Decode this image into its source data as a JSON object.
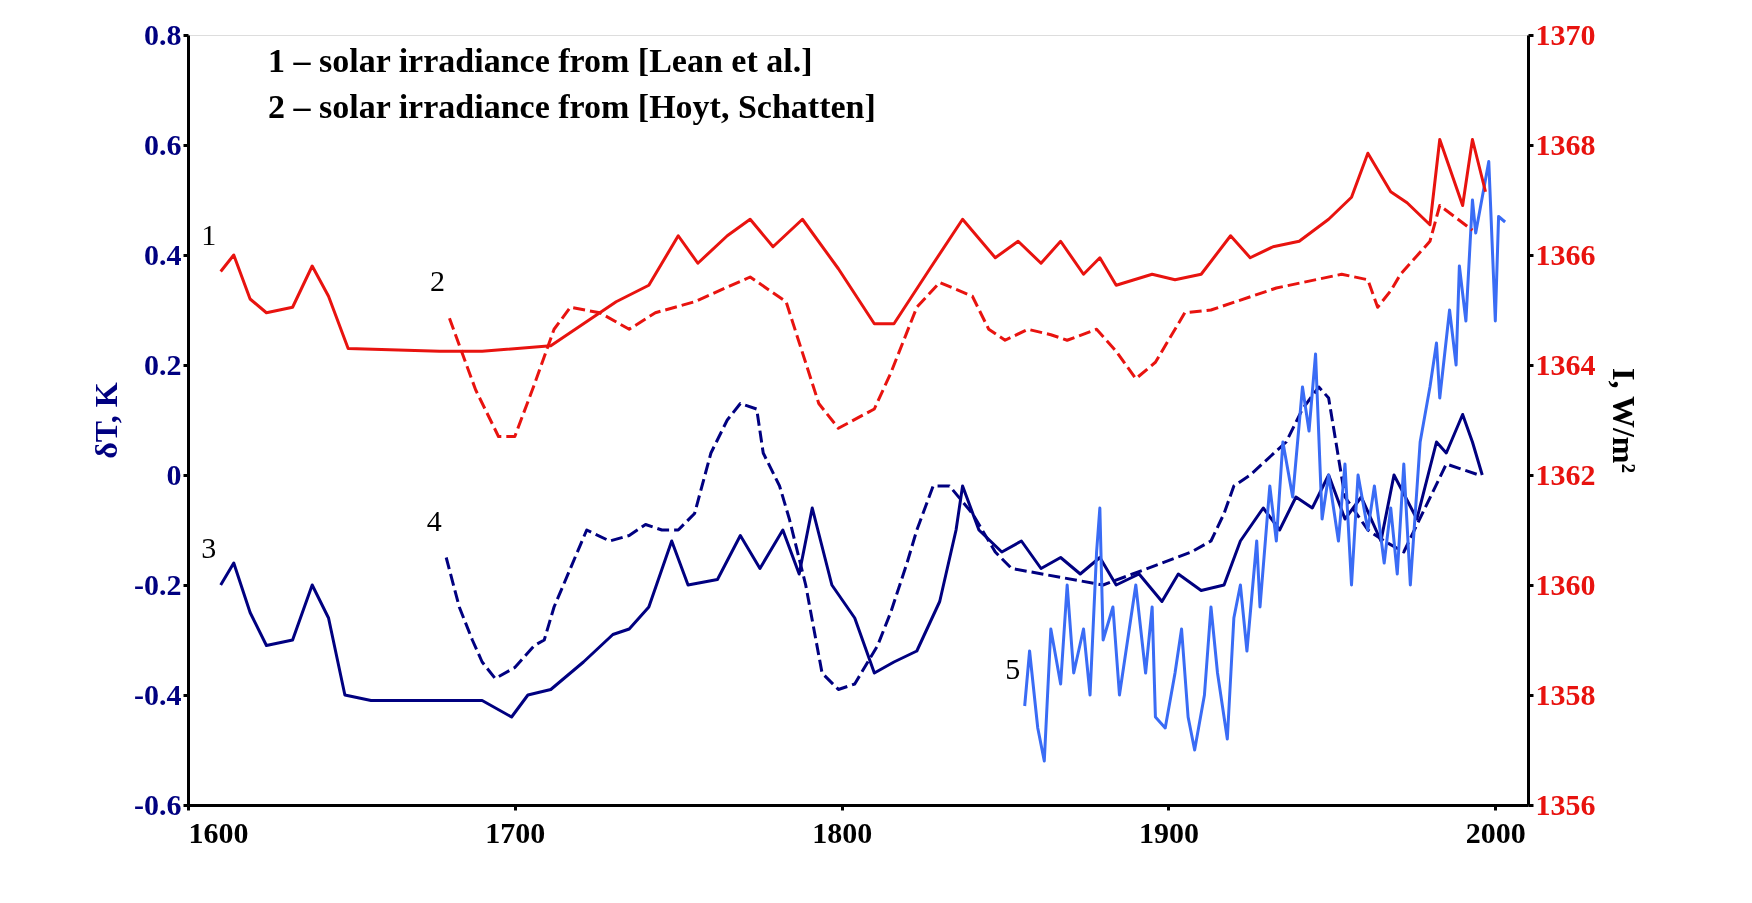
{
  "chart_data": {
    "type": "line",
    "annotations": [
      "1 – solar irradiance from [Lean et al.]",
      "2 – solar irradiance from [Hoyt, Schatten]"
    ],
    "ylabel": "δT, K",
    "y2label": "I, W/m²",
    "xlim": [
      1600,
      2010
    ],
    "xticks": [
      1600,
      1700,
      1800,
      1900,
      2000
    ],
    "ylim": [
      -0.6,
      0.8
    ],
    "yticks": [
      -0.6,
      -0.4,
      -0.2,
      0,
      0.2,
      0.4,
      0.6,
      0.8
    ],
    "y2lim": [
      1356,
      1370
    ],
    "y2ticks": [
      1356,
      1358,
      1360,
      1362,
      1364,
      1366,
      1368,
      1370
    ],
    "grid": false,
    "marker": "none",
    "series": [
      {
        "name": "1",
        "axis": "y2",
        "color": "#e8130f",
        "line_style": "solid",
        "x": [
          1610,
          1614,
          1619,
          1624,
          1632,
          1638,
          1643,
          1649,
          1677,
          1690,
          1711,
          1721,
          1731,
          1741,
          1750,
          1756,
          1765,
          1772,
          1779,
          1788,
          1799,
          1810,
          1816,
          1827,
          1837,
          1847,
          1854,
          1861,
          1867,
          1874,
          1879,
          1884,
          1895,
          1902,
          1910,
          1919,
          1925,
          1932,
          1940,
          1949,
          1956,
          1961,
          1968,
          1973,
          1980,
          1983,
          1990,
          1993,
          1997
        ],
        "values": [
          1365.7,
          1366.0,
          1365.2,
          1364.95,
          1365.05,
          1365.8,
          1365.25,
          1364.3,
          1364.25,
          1364.25,
          1364.35,
          1364.75,
          1365.15,
          1365.45,
          1366.35,
          1365.85,
          1366.35,
          1366.65,
          1366.15,
          1366.65,
          1365.75,
          1364.75,
          1364.75,
          1365.75,
          1366.65,
          1365.95,
          1366.25,
          1365.85,
          1366.25,
          1365.65,
          1365.95,
          1365.45,
          1365.65,
          1365.55,
          1365.65,
          1366.35,
          1365.95,
          1366.15,
          1366.25,
          1366.65,
          1367.05,
          1367.85,
          1367.15,
          1366.95,
          1366.55,
          1368.1,
          1366.9,
          1368.1,
          1367.15
        ]
      },
      {
        "name": "2",
        "axis": "y2",
        "color": "#e8130f",
        "line_style": "dashed",
        "x": [
          1680,
          1688,
          1695,
          1700,
          1706,
          1712,
          1717,
          1726,
          1735,
          1743,
          1755,
          1772,
          1783,
          1793,
          1799,
          1810,
          1815,
          1823,
          1830,
          1840,
          1845,
          1850,
          1857,
          1864,
          1869,
          1878,
          1884,
          1890,
          1896,
          1905,
          1913,
          1933,
          1953,
          1961,
          1964,
          1968,
          1971,
          1980,
          1983,
          1993
        ],
        "values": [
          1364.85,
          1363.55,
          1362.7,
          1362.7,
          1363.65,
          1364.65,
          1365.05,
          1364.95,
          1364.65,
          1364.95,
          1365.15,
          1365.6,
          1365.15,
          1363.3,
          1362.85,
          1363.2,
          1363.85,
          1365.05,
          1365.5,
          1365.25,
          1364.65,
          1364.45,
          1364.65,
          1364.55,
          1364.45,
          1364.65,
          1364.25,
          1363.75,
          1364.05,
          1364.95,
          1365.0,
          1365.4,
          1365.65,
          1365.55,
          1365.05,
          1365.35,
          1365.65,
          1366.25,
          1366.9,
          1366.45
        ]
      },
      {
        "name": "3",
        "axis": "y",
        "color": "#000080",
        "line_style": "solid",
        "x": [
          1610,
          1614,
          1619,
          1624,
          1632,
          1638,
          1643,
          1648,
          1656,
          1677,
          1690,
          1699,
          1704,
          1711,
          1721,
          1730,
          1735,
          1741,
          1748,
          1753,
          1762,
          1769,
          1775,
          1782,
          1787,
          1791,
          1797,
          1804,
          1810,
          1816,
          1823,
          1830,
          1835,
          1837,
          1842,
          1849,
          1855,
          1861,
          1867,
          1873,
          1879,
          1884,
          1891,
          1898,
          1903,
          1910,
          1917,
          1922,
          1929,
          1934,
          1939,
          1944,
          1949,
          1954,
          1959,
          1965,
          1969,
          1976,
          1982,
          1985,
          1990,
          1993,
          1996
        ],
        "values": [
          -0.2,
          -0.16,
          -0.25,
          -0.31,
          -0.3,
          -0.2,
          -0.26,
          -0.4,
          -0.41,
          -0.41,
          -0.41,
          -0.44,
          -0.4,
          -0.39,
          -0.34,
          -0.29,
          -0.28,
          -0.24,
          -0.12,
          -0.2,
          -0.19,
          -0.11,
          -0.17,
          -0.1,
          -0.18,
          -0.06,
          -0.2,
          -0.26,
          -0.36,
          -0.34,
          -0.32,
          -0.23,
          -0.1,
          -0.02,
          -0.1,
          -0.14,
          -0.12,
          -0.17,
          -0.15,
          -0.18,
          -0.15,
          -0.2,
          -0.18,
          -0.23,
          -0.18,
          -0.21,
          -0.2,
          -0.12,
          -0.06,
          -0.1,
          -0.04,
          -0.06,
          0.0,
          -0.08,
          -0.04,
          -0.12,
          0.0,
          -0.08,
          0.06,
          0.04,
          0.11,
          0.06,
          0.0
        ]
      },
      {
        "name": "4",
        "axis": "y",
        "color": "#000080",
        "line_style": "dashed",
        "x": [
          1679,
          1683,
          1687,
          1690,
          1694,
          1700,
          1706,
          1709,
          1712,
          1717,
          1722,
          1729,
          1735,
          1740,
          1745,
          1750,
          1755,
          1760,
          1765,
          1769,
          1774,
          1776,
          1781,
          1784,
          1789,
          1794,
          1799,
          1804,
          1811,
          1815,
          1820,
          1823,
          1828,
          1833,
          1840,
          1847,
          1852,
          1880,
          1907,
          1913,
          1917,
          1920,
          1925,
          1936,
          1941,
          1946,
          1949,
          1954,
          1961,
          1966,
          1972,
          1985,
          1995
        ],
        "values": [
          -0.15,
          -0.24,
          -0.3,
          -0.34,
          -0.37,
          -0.35,
          -0.31,
          -0.3,
          -0.24,
          -0.17,
          -0.1,
          -0.12,
          -0.11,
          -0.09,
          -0.1,
          -0.1,
          -0.07,
          0.04,
          0.1,
          0.13,
          0.12,
          0.04,
          -0.02,
          -0.08,
          -0.2,
          -0.36,
          -0.39,
          -0.38,
          -0.31,
          -0.25,
          -0.16,
          -0.1,
          -0.02,
          -0.02,
          -0.07,
          -0.14,
          -0.17,
          -0.2,
          -0.14,
          -0.12,
          -0.07,
          -0.02,
          0.0,
          0.06,
          0.12,
          0.16,
          0.14,
          -0.04,
          -0.1,
          -0.12,
          -0.14,
          0.02,
          0.0
        ]
      },
      {
        "name": "5",
        "axis": "y",
        "color": "#3a6cf5",
        "line_style": "solid",
        "x": [
          1856,
          1857.5,
          1860,
          1862,
          1864,
          1867,
          1869,
          1871,
          1874,
          1876,
          1878,
          1879,
          1880,
          1883,
          1885,
          1888,
          1890,
          1893,
          1895,
          1896,
          1899,
          1902,
          1904,
          1906,
          1908,
          1911,
          1913,
          1915,
          1918,
          1920,
          1922,
          1924,
          1927,
          1928,
          1931,
          1933,
          1935,
          1938,
          1941,
          1943,
          1945,
          1947,
          1949,
          1952,
          1954,
          1956,
          1958,
          1961,
          1963,
          1966,
          1968,
          1970,
          1972,
          1974,
          1977,
          1980,
          1982,
          1983,
          1986,
          1988,
          1989,
          1991,
          1993,
          1994,
          1998,
          2000,
          2001,
          2003
        ],
        "values": [
          -0.42,
          -0.32,
          -0.46,
          -0.52,
          -0.28,
          -0.38,
          -0.2,
          -0.36,
          -0.28,
          -0.4,
          -0.14,
          -0.06,
          -0.3,
          -0.24,
          -0.4,
          -0.28,
          -0.2,
          -0.36,
          -0.24,
          -0.44,
          -0.46,
          -0.36,
          -0.28,
          -0.44,
          -0.5,
          -0.4,
          -0.24,
          -0.36,
          -0.48,
          -0.26,
          -0.2,
          -0.32,
          -0.12,
          -0.24,
          -0.02,
          -0.12,
          0.06,
          -0.04,
          0.16,
          0.08,
          0.22,
          -0.08,
          0.0,
          -0.12,
          0.02,
          -0.2,
          0.0,
          -0.1,
          -0.02,
          -0.16,
          -0.06,
          -0.18,
          0.02,
          -0.2,
          0.06,
          0.16,
          0.24,
          0.14,
          0.3,
          0.2,
          0.38,
          0.28,
          0.5,
          0.44,
          0.57,
          0.28,
          0.47,
          0.46
        ]
      }
    ]
  }
}
